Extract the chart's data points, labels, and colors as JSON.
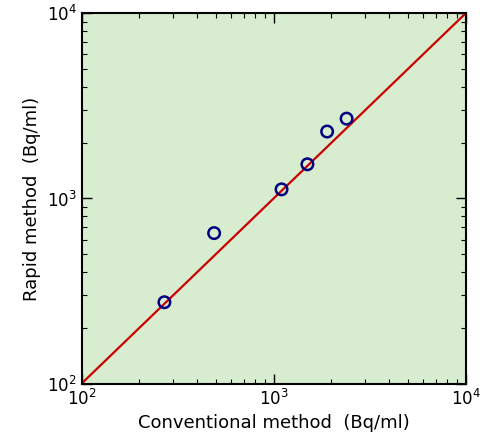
{
  "x_data": [
    270,
    490,
    1100,
    1500,
    1900,
    2400
  ],
  "y_data": [
    275,
    650,
    1120,
    1530,
    2300,
    2700
  ],
  "line_x": [
    100,
    10000
  ],
  "line_y": [
    100,
    10000
  ],
  "xlim": [
    100,
    10000
  ],
  "ylim": [
    100,
    10000
  ],
  "xlabel": "Conventional method  (Bq/ml)",
  "ylabel": "Rapid method  (Bq/ml)",
  "line_color": "#cc0000",
  "marker_color": "#000080",
  "marker_size": 11,
  "marker_linewidth": 1.8,
  "line_width": 1.6,
  "axes_facecolor": "#d8edcf",
  "label_fontsize": 13,
  "tick_fontsize": 12
}
